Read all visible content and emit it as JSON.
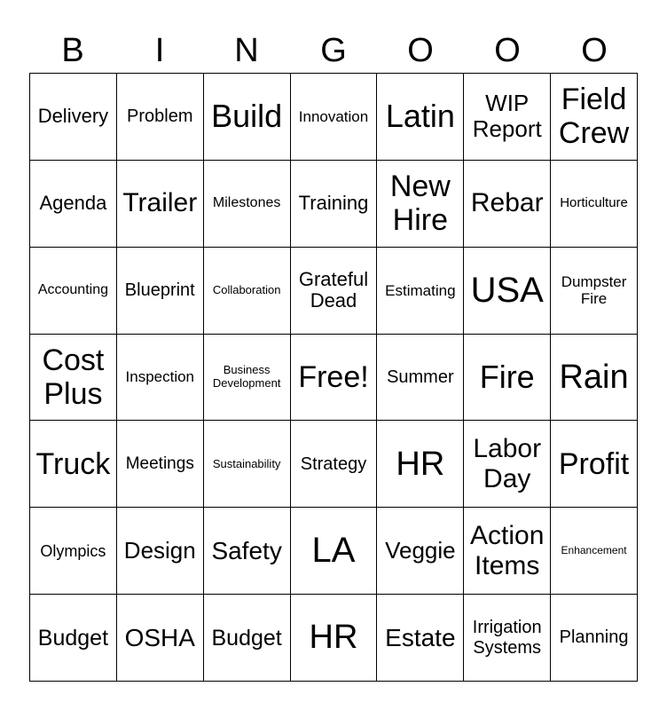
{
  "header": [
    "B",
    "I",
    "N",
    "G",
    "O",
    "O",
    "O"
  ],
  "cells": [
    [
      "Delivery",
      "Problem",
      "Build",
      "Innovation",
      "Latin",
      "WIP Report",
      "Field Crew"
    ],
    [
      "Agenda",
      "Trailer",
      "Milestones",
      "Training",
      "New Hire",
      "Rebar",
      "Horticulture"
    ],
    [
      "Accounting",
      "Blueprint",
      "Collaboration",
      "Grateful Dead",
      "Estimating",
      "USA",
      "Dumpster Fire"
    ],
    [
      "Cost Plus",
      "Inspection",
      "Business Development",
      "Free!",
      "Summer",
      "Fire",
      "Rain"
    ],
    [
      "Truck",
      "Meetings",
      "Sustainability",
      "Strategy",
      "HR",
      "Labor Day",
      "Profit"
    ],
    [
      "Olympics",
      "Design",
      "Safety",
      "LA",
      "Veggie",
      "Action Items",
      "Enhancement"
    ],
    [
      "Budget",
      "OSHA",
      "Budget",
      "HR",
      "Estate",
      "Irrigation Systems",
      "Planning"
    ]
  ]
}
